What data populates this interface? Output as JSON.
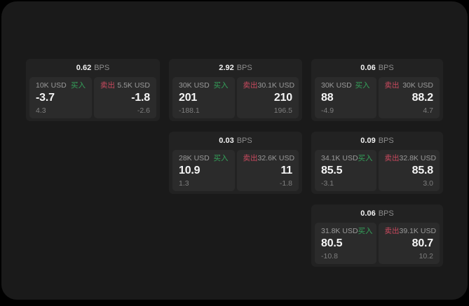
{
  "labels": {
    "buy": "买入",
    "sell": "卖出",
    "bps_unit": "BPS"
  },
  "colors": {
    "background": "#000000",
    "surface": "#1a1a1a",
    "card": "#222222",
    "panel": "#2b2b2b",
    "text_primary": "#f5f5f5",
    "text_secondary": "#9a9a9a",
    "text_dim": "#7f7f7f",
    "buy_green": "#34a15a",
    "sell_red": "#cb4a5f"
  },
  "cards": [
    {
      "col": 1,
      "row": 1,
      "bps": "0.62",
      "buy": {
        "amount": "10K USD",
        "value": "-3.7",
        "change": "4.3"
      },
      "sell": {
        "amount": "5.5K USD",
        "value": "-1.8",
        "change": "-2.6"
      }
    },
    {
      "col": 2,
      "row": 1,
      "bps": "2.92",
      "buy": {
        "amount": "30K USD",
        "value": "201",
        "change": "-188.1"
      },
      "sell": {
        "amount": "30.1K USD",
        "value": "210",
        "change": "196.5"
      }
    },
    {
      "col": 3,
      "row": 1,
      "bps": "0.06",
      "buy": {
        "amount": "30K USD",
        "value": "88",
        "change": "-4.9"
      },
      "sell": {
        "amount": "30K USD",
        "value": "88.2",
        "change": "4.7"
      }
    },
    {
      "col": 2,
      "row": 2,
      "bps": "0.03",
      "buy": {
        "amount": "28K USD",
        "value": "10.9",
        "change": "1.3"
      },
      "sell": {
        "amount": "32.6K USD",
        "value": "11",
        "change": "-1.8"
      }
    },
    {
      "col": 3,
      "row": 2,
      "bps": "0.09",
      "buy": {
        "amount": "34.1K USD",
        "value": "85.5",
        "change": "-3.1"
      },
      "sell": {
        "amount": "32.8K USD",
        "value": "85.8",
        "change": "3.0"
      }
    },
    {
      "col": 3,
      "row": 3,
      "bps": "0.06",
      "buy": {
        "amount": "31.8K USD",
        "value": "80.5",
        "change": "-10.8"
      },
      "sell": {
        "amount": "39.1K USD",
        "value": "80.7",
        "change": "10.2"
      }
    }
  ]
}
